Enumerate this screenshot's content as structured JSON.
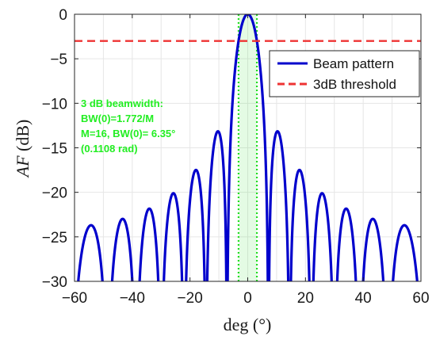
{
  "chart_data": {
    "type": "line",
    "xlabel": "deg (°)",
    "ylabel_italic": "AF",
    "ylabel_unit": " (dB)",
    "xlim": [
      -60,
      60
    ],
    "ylim": [
      -30,
      0
    ],
    "xticks": [
      -60,
      -40,
      -20,
      0,
      20,
      40,
      60
    ],
    "yticks": [
      0,
      -5,
      -10,
      -15,
      -20,
      -25,
      -30
    ],
    "xtick_labels": [
      "−60",
      "−40",
      "−20",
      "0",
      "20",
      "40",
      "60"
    ],
    "ytick_labels": [
      "0",
      "−5",
      "−10",
      "−15",
      "−20",
      "−25",
      "−30"
    ],
    "grid": true,
    "legend_placement": "top-right",
    "series": [
      {
        "name": "Beam pattern",
        "style": "solid",
        "color": "#0000cc",
        "description_of_values": "Array factor of a 16-element uniform linear array, half-wavelength spacing, normalized to 0 dB at 0°",
        "elements": 16,
        "peak_db": 0,
        "sidelobe_peaks": [
          {
            "x": -54.9,
            "y": -23.7
          },
          {
            "x": -43.5,
            "y": -22.9
          },
          {
            "x": -34.5,
            "y": -21.8
          },
          {
            "x": -26.4,
            "y": -20.2
          },
          {
            "x": -18.2,
            "y": -17.5
          },
          {
            "x": -10.6,
            "y": -13.1
          },
          {
            "x": 10.6,
            "y": -13.1
          },
          {
            "x": 18.2,
            "y": -17.5
          },
          {
            "x": 26.4,
            "y": -20.2
          },
          {
            "x": 34.5,
            "y": -21.8
          },
          {
            "x": 43.5,
            "y": -22.9
          },
          {
            "x": 54.9,
            "y": -23.7
          }
        ]
      },
      {
        "name": "3dB threshold",
        "style": "dashed",
        "color": "#ee3333",
        "y": -3
      }
    ],
    "beamwidth_band": {
      "x_min": -3.175,
      "x_max": 3.175,
      "color": "#22dd22"
    },
    "annotation": {
      "lines": [
        "3 dB beamwidth:",
        "BW(0)=1.772/M",
        "M=16, BW(0)= 6.35°",
        "(0.1108 rad)"
      ],
      "color": "#22ee22"
    }
  }
}
